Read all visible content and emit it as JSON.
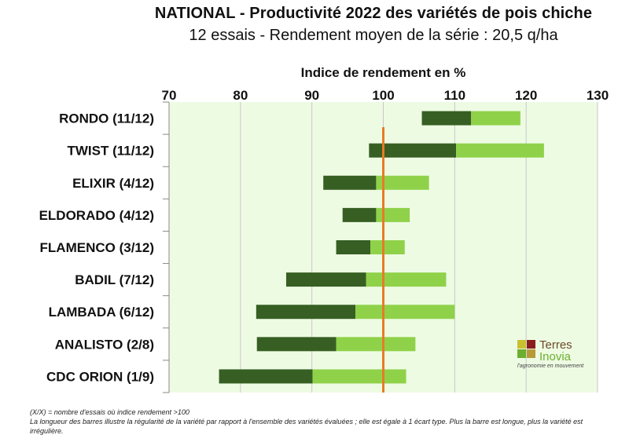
{
  "chart_data": {
    "type": "bar",
    "title": "NATIONAL - Productivité 2022 des variétés de pois chiche",
    "subtitle": "12 essais - Rendement moyen de la série : 20,5 q/ha",
    "xlabel": "Indice de rendement en %",
    "xlim": [
      70,
      130
    ],
    "xticks": [
      70,
      80,
      90,
      100,
      110,
      120,
      130
    ],
    "reference_line": 100,
    "grid": true,
    "categories": [
      "RONDO (11/12)",
      "TWIST (11/12)",
      "ELIXIR (4/12)",
      "ELDORADO (4/12)",
      "FLAMENCO (3/12)",
      "BADIL (7/12)",
      "LAMBADA (6/12)",
      "ANALISTO (2/8)",
      "CDC ORION (1/9)"
    ],
    "series": [
      {
        "low": 105.4,
        "mean": 112.3,
        "high": 119.2
      },
      {
        "low": 98.0,
        "mean": 110.2,
        "high": 122.5
      },
      {
        "low": 91.6,
        "mean": 99.0,
        "high": 106.4
      },
      {
        "low": 94.3,
        "mean": 99.0,
        "high": 103.7
      },
      {
        "low": 93.4,
        "mean": 98.2,
        "high": 103.0
      },
      {
        "low": 86.4,
        "mean": 97.6,
        "high": 108.8
      },
      {
        "low": 82.2,
        "mean": 96.1,
        "high": 110.0
      },
      {
        "low": 82.3,
        "mean": 93.4,
        "high": 104.5
      },
      {
        "low": 77.0,
        "mean": 90.1,
        "high": 103.2
      }
    ],
    "colors": {
      "plot_bg": "#eefbe3",
      "dark_bar": "#375f23",
      "light_bar": "#8fd24a",
      "ref_line": "#e87b26",
      "grid": "#c8c8c8"
    }
  },
  "logo": {
    "name_line1": "Terres",
    "name_line2": "Inovia",
    "tagline": "l'agronomie en mouvement"
  },
  "footnotes": {
    "line1": "(X/X) = nombre d'essais où indice rendement >100",
    "line2": "La longueur des barres illustre la régularité de la variété par rapport à l'ensemble des variétés évaluées ; elle est égale à 1 écart type. Plus la barre est longue, plus la variété est irrégulière."
  }
}
